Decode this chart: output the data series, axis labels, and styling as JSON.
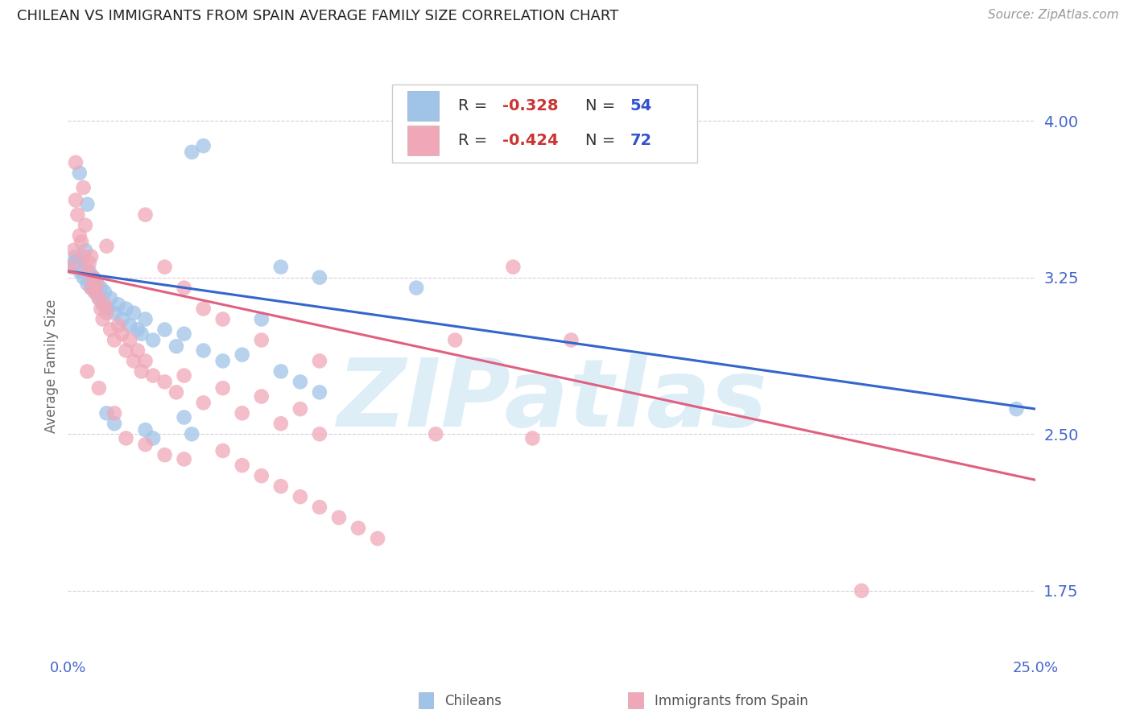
{
  "title": "CHILEAN VS IMMIGRANTS FROM SPAIN AVERAGE FAMILY SIZE CORRELATION CHART",
  "source": "Source: ZipAtlas.com",
  "ylabel": "Average Family Size",
  "xlim": [
    0.0,
    25.0
  ],
  "ylim": [
    1.45,
    4.2
  ],
  "yticks": [
    1.75,
    2.5,
    3.25,
    4.0
  ],
  "watermark": "ZIPatlas",
  "blue_color": "#a0c4e8",
  "pink_color": "#f0a8b8",
  "blue_line_color": "#3366cc",
  "pink_line_color": "#e06080",
  "axis_color": "#4466cc",
  "legend_r_color": "#cc3333",
  "legend_n_color": "#3355cc",
  "grid_color": "#d0d0e0",
  "blue_scatter": [
    [
      0.1,
      3.3
    ],
    [
      0.15,
      3.32
    ],
    [
      0.2,
      3.35
    ],
    [
      0.25,
      3.33
    ],
    [
      0.3,
      3.28
    ],
    [
      0.35,
      3.3
    ],
    [
      0.4,
      3.25
    ],
    [
      0.45,
      3.38
    ],
    [
      0.5,
      3.22
    ],
    [
      0.55,
      3.28
    ],
    [
      0.6,
      3.2
    ],
    [
      0.65,
      3.25
    ],
    [
      0.7,
      3.18
    ],
    [
      0.75,
      3.22
    ],
    [
      0.8,
      3.15
    ],
    [
      0.85,
      3.2
    ],
    [
      0.9,
      3.12
    ],
    [
      0.95,
      3.18
    ],
    [
      1.0,
      3.1
    ],
    [
      1.1,
      3.15
    ],
    [
      1.2,
      3.08
    ],
    [
      1.3,
      3.12
    ],
    [
      1.4,
      3.05
    ],
    [
      1.5,
      3.1
    ],
    [
      1.6,
      3.02
    ],
    [
      1.7,
      3.08
    ],
    [
      1.8,
      3.0
    ],
    [
      1.9,
      2.98
    ],
    [
      2.0,
      3.05
    ],
    [
      2.2,
      2.95
    ],
    [
      2.5,
      3.0
    ],
    [
      2.8,
      2.92
    ],
    [
      3.0,
      2.98
    ],
    [
      3.5,
      2.9
    ],
    [
      4.0,
      2.85
    ],
    [
      4.5,
      2.88
    ],
    [
      5.0,
      3.05
    ],
    [
      5.5,
      2.8
    ],
    [
      6.0,
      2.75
    ],
    [
      6.5,
      2.7
    ],
    [
      3.2,
      3.85
    ],
    [
      3.5,
      3.88
    ],
    [
      5.5,
      3.3
    ],
    [
      9.0,
      3.2
    ],
    [
      0.3,
      3.75
    ],
    [
      0.5,
      3.6
    ],
    [
      1.0,
      2.6
    ],
    [
      1.2,
      2.55
    ],
    [
      2.0,
      2.52
    ],
    [
      2.2,
      2.48
    ],
    [
      3.0,
      2.58
    ],
    [
      3.2,
      2.5
    ],
    [
      6.5,
      3.25
    ],
    [
      24.5,
      2.62
    ]
  ],
  "pink_scatter": [
    [
      0.1,
      3.3
    ],
    [
      0.15,
      3.38
    ],
    [
      0.2,
      3.62
    ],
    [
      0.25,
      3.55
    ],
    [
      0.3,
      3.45
    ],
    [
      0.35,
      3.42
    ],
    [
      0.4,
      3.35
    ],
    [
      0.45,
      3.5
    ],
    [
      0.5,
      3.28
    ],
    [
      0.55,
      3.32
    ],
    [
      0.6,
      3.2
    ],
    [
      0.65,
      3.25
    ],
    [
      0.7,
      3.18
    ],
    [
      0.75,
      3.22
    ],
    [
      0.8,
      3.15
    ],
    [
      0.85,
      3.1
    ],
    [
      0.9,
      3.05
    ],
    [
      0.95,
      3.12
    ],
    [
      1.0,
      3.08
    ],
    [
      1.1,
      3.0
    ],
    [
      1.2,
      2.95
    ],
    [
      1.3,
      3.02
    ],
    [
      1.4,
      2.98
    ],
    [
      1.5,
      2.9
    ],
    [
      1.6,
      2.95
    ],
    [
      1.7,
      2.85
    ],
    [
      1.8,
      2.9
    ],
    [
      1.9,
      2.8
    ],
    [
      2.0,
      2.85
    ],
    [
      2.2,
      2.78
    ],
    [
      2.5,
      2.75
    ],
    [
      2.8,
      2.7
    ],
    [
      3.0,
      2.78
    ],
    [
      3.5,
      2.65
    ],
    [
      4.0,
      2.72
    ],
    [
      4.5,
      2.6
    ],
    [
      5.0,
      2.68
    ],
    [
      5.5,
      2.55
    ],
    [
      6.0,
      2.62
    ],
    [
      6.5,
      2.5
    ],
    [
      0.2,
      3.8
    ],
    [
      0.4,
      3.68
    ],
    [
      0.6,
      3.35
    ],
    [
      1.0,
      3.4
    ],
    [
      0.5,
      2.8
    ],
    [
      0.8,
      2.72
    ],
    [
      1.2,
      2.6
    ],
    [
      1.5,
      2.48
    ],
    [
      2.0,
      3.55
    ],
    [
      2.5,
      3.3
    ],
    [
      3.0,
      3.2
    ],
    [
      3.5,
      3.1
    ],
    [
      2.0,
      2.45
    ],
    [
      2.5,
      2.4
    ],
    [
      3.0,
      2.38
    ],
    [
      4.0,
      2.42
    ],
    [
      4.5,
      2.35
    ],
    [
      5.0,
      2.3
    ],
    [
      5.5,
      2.25
    ],
    [
      6.0,
      2.2
    ],
    [
      6.5,
      2.15
    ],
    [
      7.0,
      2.1
    ],
    [
      7.5,
      2.05
    ],
    [
      8.0,
      2.0
    ],
    [
      4.0,
      3.05
    ],
    [
      5.0,
      2.95
    ],
    [
      6.5,
      2.85
    ],
    [
      10.0,
      2.95
    ],
    [
      11.5,
      3.3
    ],
    [
      13.0,
      2.95
    ],
    [
      9.5,
      2.5
    ],
    [
      12.0,
      2.48
    ],
    [
      20.5,
      1.75
    ]
  ],
  "blue_trendline": [
    [
      0.0,
      3.28
    ],
    [
      25.0,
      2.62
    ]
  ],
  "pink_trendline": [
    [
      0.0,
      3.28
    ],
    [
      25.0,
      2.28
    ]
  ]
}
